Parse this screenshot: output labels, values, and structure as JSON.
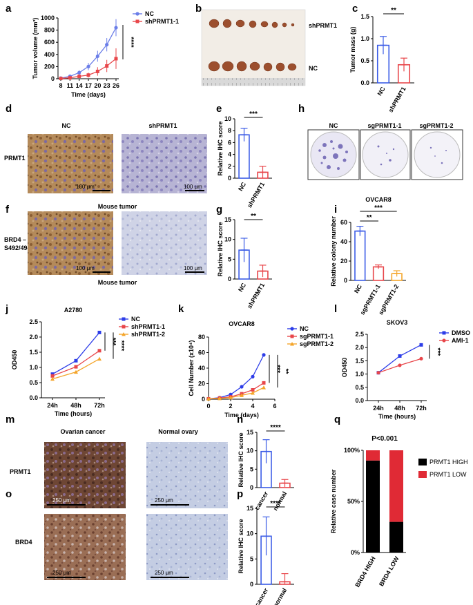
{
  "panels": {
    "a": "a",
    "b": "b",
    "c": "c",
    "d": "d",
    "e": "e",
    "f": "f",
    "g": "g",
    "h": "h",
    "i": "i",
    "j": "j",
    "k": "k",
    "l": "l",
    "m": "m",
    "n": "n",
    "o": "o",
    "p": "p",
    "q": "q"
  },
  "images": {
    "b_label_top": "shPRMT1",
    "b_label_bottom": "NC",
    "d_col_nc": "NC",
    "d_col_sh": "shPRMT1",
    "d_row_label": "PRMT1",
    "d_scale": "100 μm",
    "d_caption": "Mouse tumor",
    "f_row_label_1": "BRD4 –",
    "f_row_label_2": "S492/494",
    "f_scale": "100 μm",
    "f_caption": "Mouse tumor",
    "h_nc": "NC",
    "h_sg1": "sgPRMT1-1",
    "h_sg2": "sgPRMT1-2",
    "m_col_cancer": "Ovarian cancer",
    "m_col_normal": "Normal ovary",
    "m_row_label": "PRMT1",
    "o_row_label": "BRD4",
    "m_scale": "250 μm"
  },
  "colors": {
    "blue": "#3a5be6",
    "red": "#e8464a",
    "orange": "#f4a52a",
    "black": "#000000"
  },
  "chart_data": [
    {
      "id": "a",
      "type": "line",
      "ylabel": "Tumor volume (mm³)",
      "xlabel": "Time (days)",
      "x": [
        8,
        11,
        14,
        17,
        20,
        23,
        26
      ],
      "ylim": [
        0,
        1000
      ],
      "yticks": [
        0,
        200,
        400,
        600,
        800,
        1000
      ],
      "significance": "****",
      "series": [
        {
          "name": "NC",
          "color": "#6b7ee8",
          "values": [
            10,
            40,
            100,
            200,
            370,
            560,
            840
          ],
          "err": [
            10,
            20,
            40,
            60,
            90,
            110,
            140
          ]
        },
        {
          "name": "shPRMT1-1",
          "color": "#e8464a",
          "values": [
            5,
            15,
            40,
            60,
            120,
            210,
            330
          ],
          "err": [
            5,
            10,
            20,
            40,
            70,
            100,
            170
          ]
        }
      ]
    },
    {
      "id": "c",
      "type": "bar",
      "ylabel": "Tumor mass (g)",
      "categories": [
        "NC",
        "shPRMT1"
      ],
      "values": [
        0.85,
        0.41
      ],
      "err": [
        0.2,
        0.15
      ],
      "colors": [
        "#3a5be6",
        "#e8464a"
      ],
      "ylim": [
        0,
        1.5
      ],
      "yticks": [
        0.0,
        0.5,
        1.0,
        1.5
      ],
      "significance": "**"
    },
    {
      "id": "e",
      "type": "bar",
      "ylabel": "Relative IHC score",
      "categories": [
        "NC",
        "shPRMT1"
      ],
      "values": [
        7.3,
        1.0
      ],
      "err": [
        1.1,
        1.0
      ],
      "colors": [
        "#3a5be6",
        "#e8464a"
      ],
      "ylim": [
        0,
        10
      ],
      "yticks": [
        0,
        2,
        4,
        6,
        8,
        10
      ],
      "significance": "***"
    },
    {
      "id": "g",
      "type": "bar",
      "ylabel": "Relative IHC score",
      "categories": [
        "NC",
        "shPRMT1"
      ],
      "values": [
        7.3,
        2.0
      ],
      "err": [
        3.0,
        1.5
      ],
      "colors": [
        "#3a5be6",
        "#e8464a"
      ],
      "ylim": [
        0,
        15
      ],
      "yticks": [
        0,
        5,
        10,
        15
      ],
      "significance": "**"
    },
    {
      "id": "i",
      "type": "bar",
      "title": "OVCAR8",
      "ylabel": "Relative colony number",
      "categories": [
        "NC",
        "sgPRMT1-1",
        "sgPRMT1-2"
      ],
      "values": [
        51,
        14,
        7
      ],
      "err": [
        5,
        2,
        3
      ],
      "colors": [
        "#3a5be6",
        "#e8464a",
        "#f4a52a"
      ],
      "ylim": [
        0,
        60
      ],
      "yticks": [
        0,
        20,
        40,
        60
      ],
      "significance": [
        "**",
        "***"
      ]
    },
    {
      "id": "j",
      "type": "line",
      "title": "A2780",
      "ylabel": "OD450",
      "xlabel": "Time (hours)",
      "categories": [
        "24h",
        "48h",
        "72h"
      ],
      "ylim": [
        0,
        2.5
      ],
      "yticks": [
        0.0,
        0.5,
        1.0,
        1.5,
        2.0,
        2.5
      ],
      "significance": [
        "***",
        "****"
      ],
      "series": [
        {
          "name": "NC",
          "color": "#2d3de8",
          "values": [
            0.78,
            1.22,
            2.15
          ]
        },
        {
          "name": "shPRMT1-1",
          "color": "#e8464a",
          "values": [
            0.72,
            1.02,
            1.55
          ]
        },
        {
          "name": "shPRMT1-2",
          "color": "#f4a52a",
          "values": [
            0.62,
            0.85,
            1.28
          ]
        }
      ]
    },
    {
      "id": "k",
      "type": "line",
      "title": "OVCAR8",
      "ylabel": "Cell Number (x10⁴)",
      "xlabel": "Time (days)",
      "x": [
        0,
        1,
        2,
        3,
        4,
        5
      ],
      "ylim": [
        0,
        80
      ],
      "yticks": [
        0,
        20,
        40,
        60,
        80
      ],
      "xticks": [
        0,
        2,
        4,
        6
      ],
      "significance": [
        "***",
        "**"
      ],
      "series": [
        {
          "name": "NC",
          "color": "#2d3de8",
          "values": [
            0.5,
            2,
            6,
            16,
            29,
            57
          ]
        },
        {
          "name": "sgPRMT1-1",
          "color": "#e8464a",
          "values": [
            0.5,
            1.5,
            3,
            7,
            12,
            21
          ]
        },
        {
          "name": "sgPRMT1-2",
          "color": "#f4a52a",
          "values": [
            0.5,
            1,
            2,
            5,
            8,
            15
          ]
        }
      ]
    },
    {
      "id": "l",
      "type": "line",
      "title": "SKOV3",
      "ylabel": "OD450",
      "xlabel": "Time (hours)",
      "categories": [
        "24h",
        "48h",
        "72h"
      ],
      "ylim": [
        0,
        2.5
      ],
      "yticks": [
        0,
        0.5,
        1.0,
        1.5,
        2.0,
        2.5
      ],
      "significance": "***",
      "series": [
        {
          "name": "DMSO",
          "color": "#2d3de8",
          "values": [
            1.05,
            1.68,
            2.1
          ]
        },
        {
          "name": "AMI-1",
          "color": "#e8464a",
          "values": [
            1.05,
            1.33,
            1.58
          ]
        }
      ]
    },
    {
      "id": "n",
      "type": "bar",
      "ylabel": "Relative IHC score",
      "categories": [
        "cancer",
        "normal"
      ],
      "values": [
        9.8,
        1.2
      ],
      "err": [
        3.2,
        1.0
      ],
      "colors": [
        "#3a5be6",
        "#e8464a"
      ],
      "ylim": [
        0,
        15
      ],
      "yticks": [
        0,
        5,
        10,
        15
      ],
      "significance": "****"
    },
    {
      "id": "p",
      "type": "bar",
      "ylabel": "Relative IHC score",
      "categories": [
        "cancer",
        "normal"
      ],
      "values": [
        9.5,
        0.5
      ],
      "err": [
        3.8,
        1.6
      ],
      "colors": [
        "#3a5be6",
        "#e8464a"
      ],
      "ylim": [
        0,
        15
      ],
      "yticks": [
        0,
        5,
        10,
        15
      ],
      "significance": "****"
    },
    {
      "id": "q",
      "type": "bar",
      "title": "P<0.001",
      "ylabel": "Relative case number",
      "categories": [
        "BRD4 HIGH",
        "BRD4 LOW"
      ],
      "yticks": [
        "0%",
        "50%",
        "100%"
      ],
      "series": [
        {
          "name": "PRMT1 HIGH",
          "color": "#000000",
          "values": [
            90,
            30
          ]
        },
        {
          "name": "PRMT1 LOW",
          "color": "#e02a35",
          "values": [
            10,
            70
          ]
        }
      ]
    }
  ]
}
